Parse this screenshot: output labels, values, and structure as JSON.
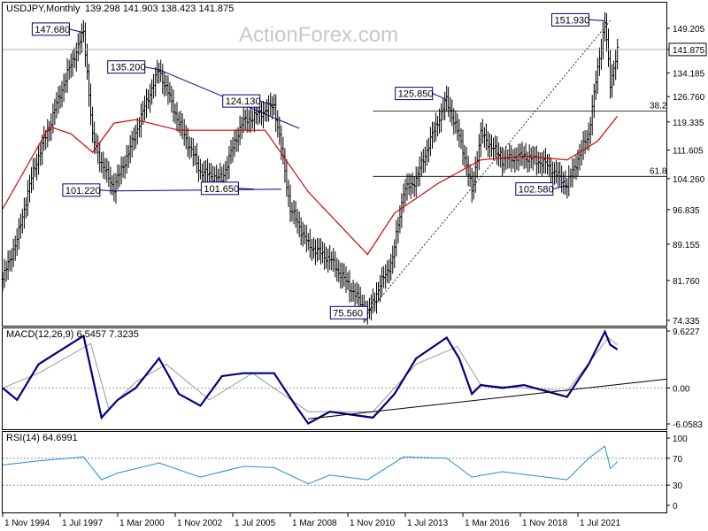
{
  "header": {
    "symbol": "USDJPY,Monthly",
    "ohlc": "139.298 141.903 138.423 141.875",
    "watermark": "ActionForex.com"
  },
  "chart_data": [
    {
      "type": "ohlc",
      "title": "USDJPY,Monthly 139.298 141.903 138.423 141.875",
      "current_price": 141.875,
      "price_label": "141.875",
      "y_ticks": [
        "149.205",
        "141.875",
        "134.185",
        "126.760",
        "119.335",
        "111.605",
        "104.260",
        "96.835",
        "89.155",
        "81.760",
        "74.335"
      ],
      "x_ticks": [
        "1 Nov 1994",
        "1 Jul 1997",
        "1 Mar 2000",
        "1 Nov 2002",
        "1 Jul 2005",
        "1 Mar 2008",
        "1 Nov 2010",
        "1 Jul 2013",
        "1 Mar 2016",
        "1 Nov 2018",
        "1 Jul 2021"
      ],
      "price_anchors": [
        {
          "x": "1 Nov 1994",
          "y": 82
        },
        {
          "x": "1 Jul 1995",
          "y": 90
        },
        {
          "x": "1 Apr 1996",
          "y": 106
        },
        {
          "x": "1 Jan 1997",
          "y": 118
        },
        {
          "x": "1 Jun 1997",
          "y": 126
        },
        {
          "x": "1 Aug 1998",
          "y": 147.68
        },
        {
          "x": "1 Jan 1999",
          "y": 115
        },
        {
          "x": "1 Jul 1999",
          "y": 107
        },
        {
          "x": "1 Jan 2000",
          "y": 102
        },
        {
          "x": "1 Oct 2000",
          "y": 112
        },
        {
          "x": "1 Feb 2002",
          "y": 135.2
        },
        {
          "x": "1 Jan 2003",
          "y": 119
        },
        {
          "x": "1 Jan 2004",
          "y": 106
        },
        {
          "x": "1 Jan 2005",
          "y": 104
        },
        {
          "x": "1 Dec 2005",
          "y": 119
        },
        {
          "x": "1 Jun 2007",
          "y": 124.13
        },
        {
          "x": "1 Mar 2008",
          "y": 97
        },
        {
          "x": "1 Jan 2009",
          "y": 89
        },
        {
          "x": "1 Jan 2010",
          "y": 86
        },
        {
          "x": "1 Oct 2011",
          "y": 75.56
        },
        {
          "x": "1 Dec 2012",
          "y": 86
        },
        {
          "x": "1 Jun 2013",
          "y": 101
        },
        {
          "x": "1 Jan 2014",
          "y": 104
        },
        {
          "x": "1 Jun 2015",
          "y": 125.85
        },
        {
          "x": "1 Mar 2016",
          "y": 112
        },
        {
          "x": "1 Aug 2016",
          "y": 101
        },
        {
          "x": "1 Jan 2017",
          "y": 116
        },
        {
          "x": "1 Jan 2018",
          "y": 109
        },
        {
          "x": "1 Jan 2019",
          "y": 110
        },
        {
          "x": "1 Jan 2020",
          "y": 108
        },
        {
          "x": "1 Jan 2021",
          "y": 102.58
        },
        {
          "x": "1 Jan 2022",
          "y": 116
        },
        {
          "x": "1 Jun 2022",
          "y": 135
        },
        {
          "x": "1 Oct 2022",
          "y": 151.93
        },
        {
          "x": "1 Jan 2023",
          "y": 130
        },
        {
          "x": "1 Apr 2023",
          "y": 139.3
        },
        {
          "x": "1 May 2023",
          "y": 141.875
        }
      ],
      "moving_average": [
        {
          "x": "1 Nov 1994",
          "y": 97
        },
        {
          "x": "1 Jan 1997",
          "y": 118
        },
        {
          "x": "1 Jan 1998",
          "y": 116
        },
        {
          "x": "1 Jan 1999",
          "y": 111
        },
        {
          "x": "1 Jan 2000",
          "y": 119
        },
        {
          "x": "1 Jan 2001",
          "y": 120
        },
        {
          "x": "1 Jan 2003",
          "y": 117
        },
        {
          "x": "1 Jan 2005",
          "y": 117
        },
        {
          "x": "1 Jan 2007",
          "y": 117
        },
        {
          "x": "1 Jan 2009",
          "y": 101
        },
        {
          "x": "1 Oct 2011",
          "y": 87
        },
        {
          "x": "1 Jan 2013",
          "y": 96
        },
        {
          "x": "1 Jan 2015",
          "y": 103
        },
        {
          "x": "1 Jan 2017",
          "y": 109
        },
        {
          "x": "1 Jan 2019",
          "y": 110
        },
        {
          "x": "1 Jan 2021",
          "y": 109
        },
        {
          "x": "1 Jun 2022",
          "y": 114
        },
        {
          "x": "1 May 2023",
          "y": 121
        }
      ],
      "pivot_labels": [
        "147.680",
        "135.200",
        "124.130",
        "101.220",
        "101.650",
        "75.560",
        "125.850",
        "102.580",
        "151.930"
      ],
      "fib_levels": [
        {
          "label": "38.2",
          "price": 122.5
        },
        {
          "label": "61.8",
          "price": 104.8
        }
      ]
    },
    {
      "type": "line",
      "title": "MACD(12,26,9) 6.5457 7.3235",
      "y_ticks": [
        "9.6227",
        "0.00",
        "-6.0583"
      ],
      "ylim": [
        -6.0583,
        9.6227
      ],
      "series": [
        {
          "name": "MACD",
          "values": [
            {
              "x": "1 Nov 1994",
              "y": 0
            },
            {
              "x": "1 Jul 1995",
              "y": -2
            },
            {
              "x": "1 Jul 1996",
              "y": 4
            },
            {
              "x": "1 Aug 1998",
              "y": 8.8
            },
            {
              "x": "1 Jun 1999",
              "y": -5
            },
            {
              "x": "1 Mar 2000",
              "y": -2
            },
            {
              "x": "1 Jan 2001",
              "y": 0
            },
            {
              "x": "1 Feb 2002",
              "y": 5
            },
            {
              "x": "1 Jan 2003",
              "y": -1
            },
            {
              "x": "1 Jan 2004",
              "y": -3
            },
            {
              "x": "1 Jan 2005",
              "y": 2
            },
            {
              "x": "1 Jan 2006",
              "y": 2.5
            },
            {
              "x": "1 Jun 2007",
              "y": 2.5
            },
            {
              "x": "1 Jun 2008",
              "y": -3
            },
            {
              "x": "1 Jan 2009",
              "y": -6
            },
            {
              "x": "1 Jan 2010",
              "y": -4
            },
            {
              "x": "1 Jan 2012",
              "y": -5
            },
            {
              "x": "1 Jan 2013",
              "y": -1
            },
            {
              "x": "1 Jan 2014",
              "y": 5
            },
            {
              "x": "1 Jun 2015",
              "y": 8.5
            },
            {
              "x": "1 Jan 2016",
              "y": 5
            },
            {
              "x": "1 Aug 2016",
              "y": -1
            },
            {
              "x": "1 Jan 2017",
              "y": 0.5
            },
            {
              "x": "1 Jan 2018",
              "y": 0
            },
            {
              "x": "1 Jan 2019",
              "y": 0.5
            },
            {
              "x": "1 Jan 2020",
              "y": -0.5
            },
            {
              "x": "1 Jan 2021",
              "y": -1.5
            },
            {
              "x": "1 Jan 2022",
              "y": 4
            },
            {
              "x": "1 Oct 2022",
              "y": 9.5
            },
            {
              "x": "1 Jan 2023",
              "y": 7.3
            },
            {
              "x": "1 May 2023",
              "y": 6.5
            }
          ]
        },
        {
          "name": "Signal",
          "values": [
            {
              "x": "1 Nov 1994",
              "y": 0
            },
            {
              "x": "1 Jul 1996",
              "y": 2.5
            },
            {
              "x": "1 Dec 1998",
              "y": 7.5
            },
            {
              "x": "1 Oct 1999",
              "y": -3.5
            },
            {
              "x": "1 Jan 2001",
              "y": 1
            },
            {
              "x": "1 Jun 2002",
              "y": 4
            },
            {
              "x": "1 Jun 2004",
              "y": -2
            },
            {
              "x": "1 Jun 2006",
              "y": 2.5
            },
            {
              "x": "1 Jan 2009",
              "y": -4
            },
            {
              "x": "1 Jan 2012",
              "y": -4
            },
            {
              "x": "1 Jan 2014",
              "y": 4
            },
            {
              "x": "1 Dec 2015",
              "y": 7
            },
            {
              "x": "1 Jan 2017",
              "y": 0.5
            },
            {
              "x": "1 Jan 2021",
              "y": -0.5
            },
            {
              "x": "1 Dec 2022",
              "y": 8.5
            },
            {
              "x": "1 May 2023",
              "y": 7.3
            }
          ]
        }
      ]
    },
    {
      "type": "line",
      "title": "RSI(14) 64.6991",
      "y_ticks": [
        "100",
        "70",
        "30",
        "0"
      ],
      "ylim": [
        0,
        100
      ],
      "levels": [
        70,
        30
      ],
      "series": [
        {
          "name": "RSI",
          "values": [
            {
              "x": "1 Nov 1994",
              "y": 60
            },
            {
              "x": "1 Jul 1996",
              "y": 66
            },
            {
              "x": "1 Aug 1998",
              "y": 72
            },
            {
              "x": "1 Jun 1999",
              "y": 38
            },
            {
              "x": "1 Mar 2000",
              "y": 48
            },
            {
              "x": "1 Feb 2002",
              "y": 63
            },
            {
              "x": "1 Jan 2004",
              "y": 42
            },
            {
              "x": "1 Jan 2006",
              "y": 58
            },
            {
              "x": "1 Jun 2007",
              "y": 56
            },
            {
              "x": "1 Jan 2009",
              "y": 32
            },
            {
              "x": "1 Jan 2010",
              "y": 45
            },
            {
              "x": "1 Oct 2011",
              "y": 38
            },
            {
              "x": "1 Jun 2013",
              "y": 72
            },
            {
              "x": "1 Jun 2015",
              "y": 70
            },
            {
              "x": "1 Aug 2016",
              "y": 42
            },
            {
              "x": "1 Jan 2018",
              "y": 50
            },
            {
              "x": "1 Jan 2021",
              "y": 38
            },
            {
              "x": "1 Jan 2022",
              "y": 70
            },
            {
              "x": "1 Oct 2022",
              "y": 88
            },
            {
              "x": "1 Jan 2023",
              "y": 55
            },
            {
              "x": "1 May 2023",
              "y": 64.7
            }
          ]
        }
      ]
    }
  ],
  "colors": {
    "price": "#000000",
    "ma": "#d40000",
    "macd": "#000080",
    "signal": "#999999",
    "rsi": "#1f8fd6",
    "label_border": "#000080",
    "levels": "#808080"
  }
}
